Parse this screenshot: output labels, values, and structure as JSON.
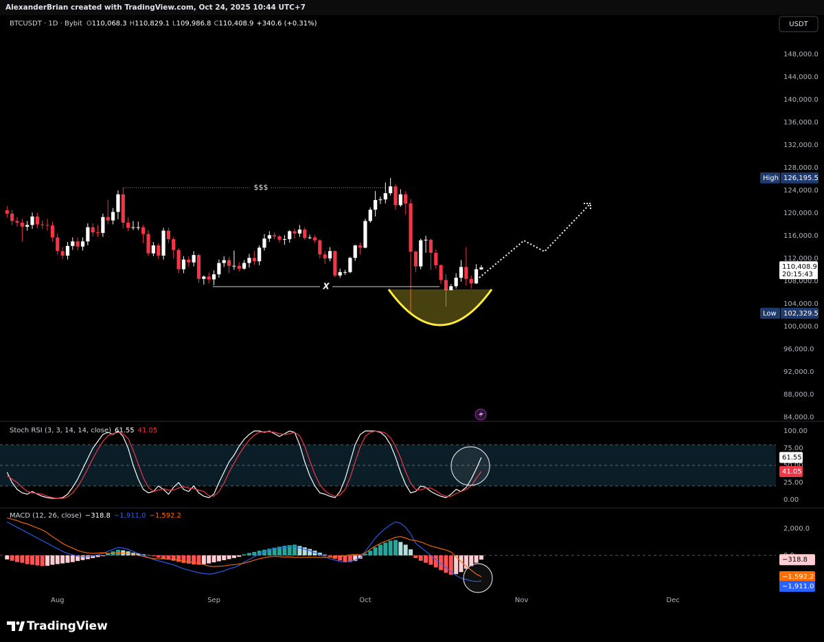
{
  "header": {
    "attribution": "AlexanderBrian created with TradingView.com, Oct 24, 2025 10:44 UTC+7",
    "currency": "USDT"
  },
  "footer": {
    "brand": "TradingView"
  },
  "chart_data": [
    {
      "type": "candlestick",
      "symbol": "BTCUSDT · 1D · Bybit",
      "legend_values": [
        {
          "key": "O",
          "text": "110,068.3"
        },
        {
          "key": "H",
          "text": "110,829.1"
        },
        {
          "key": "L",
          "text": "109,986.8"
        },
        {
          "key": "C",
          "text": "110,408.9"
        }
      ],
      "change": "+340.6 (+0.31%)",
      "annotations": [
        "$$$",
        "X"
      ],
      "xlim": [
        -1.4,
        152.4
      ],
      "xticks": [
        {
          "value": 10,
          "label": "Aug"
        },
        {
          "value": 41,
          "label": "Sep"
        },
        {
          "value": 71,
          "label": "Oct"
        },
        {
          "value": 102,
          "label": "Nov"
        },
        {
          "value": 132,
          "label": "Dec"
        }
      ],
      "ylim": [
        83400,
        154900
      ],
      "yticks": [
        {
          "value": 84000,
          "label": "84,000.0"
        },
        {
          "value": 88000,
          "label": "88,000.0"
        },
        {
          "value": 92000,
          "label": "92,000.0"
        },
        {
          "value": 96000,
          "label": "96,000.0"
        },
        {
          "value": 100000,
          "label": "100,000.0"
        },
        {
          "value": 104000,
          "label": "104,000.0"
        },
        {
          "value": 108000,
          "label": "108,000.0"
        },
        {
          "value": 112000,
          "label": "112,000.0"
        },
        {
          "value": 116000,
          "label": "116,000.0"
        },
        {
          "value": 120000,
          "label": "120,000.0"
        },
        {
          "value": 124000,
          "label": "124,000.0"
        },
        {
          "value": 128000,
          "label": "128,000.0"
        },
        {
          "value": 132000,
          "label": "132,000.0"
        },
        {
          "value": 136000,
          "label": "136,000.0"
        },
        {
          "value": 140000,
          "label": "140,000.0"
        },
        {
          "value": 144000,
          "label": "144,000.0"
        },
        {
          "value": 148000,
          "label": "148,000.0"
        }
      ],
      "up_color": "#ffffff",
      "down_color": "#f23645",
      "open": [
        120500,
        119900,
        118600,
        118300,
        117600,
        117900,
        119400,
        118000,
        117900,
        117800,
        115700,
        113300,
        112500,
        114200,
        115000,
        114100,
        115000,
        117500,
        116600,
        116500,
        119300,
        118700,
        120200,
        123300,
        118300,
        117400,
        117500,
        117500,
        116300,
        112900,
        114300,
        112500,
        116900,
        115400,
        113500,
        110100,
        111800,
        111300,
        112600,
        108400,
        108800,
        108300,
        109200,
        111200,
        111700,
        110700,
        110700,
        110200,
        111200,
        112100,
        111500,
        113900,
        115500,
        116100,
        115900,
        115300,
        115400,
        116800,
        116400,
        117100,
        115600,
        115700,
        115200,
        112700,
        112000,
        113300,
        109000,
        109600,
        109600,
        112100,
        114300,
        113900,
        118600,
        120600,
        122300,
        122400,
        123500,
        124700,
        121400,
        123300,
        121700,
        113200,
        110600,
        115200,
        115300,
        113000,
        110800,
        108200,
        106400,
        107100,
        108600,
        110500,
        108400,
        107600,
        110068.3
      ],
      "high": [
        121200,
        120600,
        119300,
        119000,
        118600,
        120100,
        120100,
        118700,
        119000,
        118500,
        116400,
        114000,
        114900,
        115700,
        115700,
        115700,
        118200,
        118200,
        117900,
        119900,
        122300,
        120900,
        124000,
        124500,
        119200,
        118600,
        118500,
        117900,
        117000,
        114900,
        114700,
        117400,
        117400,
        115800,
        113800,
        112400,
        112400,
        113300,
        112800,
        109000,
        109500,
        109900,
        111800,
        112400,
        112300,
        113400,
        111300,
        111700,
        112800,
        113300,
        114300,
        116300,
        116800,
        116600,
        116100,
        116100,
        117000,
        117300,
        117900,
        117500,
        116200,
        116100,
        115400,
        113300,
        114000,
        113400,
        110200,
        110000,
        112300,
        114400,
        114800,
        119000,
        121000,
        123900,
        122900,
        125400,
        126195.5,
        125100,
        124200,
        123900,
        122500,
        113400,
        115500,
        116000,
        115500,
        113600,
        111000,
        109200,
        107500,
        109400,
        111700,
        114000,
        109000,
        111000,
        110829.1
      ],
      "low": [
        119200,
        117900,
        117600,
        115000,
        116900,
        117200,
        117300,
        117200,
        116900,
        115000,
        112600,
        111900,
        111800,
        113500,
        113400,
        113400,
        114300,
        115900,
        115800,
        115800,
        118000,
        118000,
        118900,
        117300,
        116800,
        117000,
        117000,
        114700,
        112400,
        112400,
        111900,
        111800,
        114700,
        112000,
        109400,
        109400,
        110500,
        110600,
        107700,
        107400,
        107600,
        107300,
        108600,
        110500,
        109400,
        110000,
        109700,
        110000,
        110400,
        110900,
        110800,
        113400,
        114900,
        115400,
        114800,
        114400,
        114800,
        115500,
        115800,
        115300,
        115400,
        114800,
        112000,
        111000,
        111500,
        108700,
        108600,
        109100,
        109400,
        111600,
        112700,
        113800,
        118300,
        119400,
        121600,
        121700,
        123100,
        120600,
        121100,
        119700,
        102329.5,
        109600,
        110100,
        113000,
        110000,
        110200,
        107500,
        103500,
        106400,
        106700,
        107900,
        107200,
        106700,
        107500,
        109986.8
      ],
      "close": [
        119900,
        118600,
        118300,
        117600,
        117900,
        119400,
        118000,
        117900,
        117800,
        115700,
        113300,
        112500,
        114200,
        115000,
        114100,
        115000,
        117500,
        116600,
        116500,
        119300,
        118700,
        120200,
        123300,
        118300,
        117400,
        117500,
        117500,
        116300,
        112900,
        114300,
        112500,
        116900,
        115400,
        113500,
        110100,
        111800,
        111300,
        112600,
        108400,
        108800,
        108300,
        109200,
        111200,
        111700,
        110700,
        110700,
        110200,
        111200,
        112100,
        111500,
        113900,
        115500,
        116100,
        115900,
        115300,
        115400,
        116800,
        116400,
        117100,
        115600,
        115700,
        115200,
        112700,
        112000,
        113300,
        109000,
        109600,
        109600,
        112100,
        114300,
        113900,
        118600,
        120600,
        122300,
        122400,
        123500,
        124700,
        121400,
        123300,
        121700,
        113200,
        110600,
        115200,
        115300,
        113000,
        110800,
        108200,
        106400,
        107100,
        108600,
        110500,
        108400,
        107600,
        110100,
        110408.9
      ],
      "last_label": "110,408.9",
      "countdown": "20:15:43",
      "high_marker": {
        "label": "High",
        "text": "126,195.5"
      },
      "low_marker": {
        "label": "Low",
        "text": "102,329.5"
      }
    },
    {
      "type": "line",
      "title": "Stoch RSI (3, 3, 14, 14, close)",
      "ylim": [
        -11,
        113
      ],
      "yticks": [
        {
          "value": 0,
          "label": "0.00"
        },
        {
          "value": 25,
          "label": "25.00"
        },
        {
          "value": 50,
          "label": "50.00"
        },
        {
          "value": 75,
          "label": "75.00"
        },
        {
          "value": 100,
          "label": "100.00"
        }
      ],
      "bands": [
        80,
        50,
        20
      ],
      "band_color": "#0b1d27",
      "series": [
        {
          "color": "#ffffff",
          "values": [
            40,
            25,
            15,
            10,
            8,
            12,
            8,
            5,
            3,
            2,
            2,
            3,
            8,
            18,
            30,
            45,
            60,
            75,
            85,
            95,
            98,
            95,
            100,
            92,
            75,
            50,
            30,
            15,
            10,
            12,
            20,
            15,
            8,
            18,
            25,
            15,
            12,
            20,
            10,
            5,
            3,
            8,
            25,
            40,
            55,
            65,
            78,
            88,
            95,
            100,
            100,
            98,
            100,
            96,
            92,
            96,
            100,
            98,
            80,
            55,
            35,
            20,
            10,
            8,
            5,
            3,
            12,
            30,
            55,
            80,
            95,
            100,
            100,
            100,
            98,
            92,
            80,
            62,
            40,
            22,
            10,
            12,
            20,
            18,
            12,
            8,
            5,
            3,
            8,
            15,
            12,
            18,
            30,
            45,
            61.55
          ]
        },
        {
          "color": "#f23645",
          "values": [
            35,
            30,
            25,
            18,
            12,
            10,
            9,
            8,
            5,
            3,
            2,
            2,
            4,
            10,
            19,
            31,
            45,
            60,
            73,
            85,
            93,
            96,
            98,
            96,
            89,
            72,
            52,
            32,
            18,
            12,
            14,
            16,
            14,
            14,
            17,
            19,
            17,
            16,
            14,
            12,
            6,
            5,
            12,
            24,
            40,
            53,
            66,
            77,
            87,
            94,
            98,
            99,
            99,
            98,
            96,
            95,
            96,
            98,
            93,
            78,
            57,
            37,
            22,
            13,
            8,
            5,
            7,
            15,
            32,
            55,
            77,
            92,
            98,
            100,
            99,
            97,
            90,
            78,
            61,
            41,
            24,
            15,
            14,
            17,
            17,
            13,
            8,
            5,
            5,
            9,
            12,
            15,
            20,
            31,
            41.05
          ]
        }
      ]
    },
    {
      "type": "macd",
      "title": "MACD (12, 26, close)",
      "ylim": [
        -2670,
        3490
      ],
      "yticks": [
        {
          "value": 0,
          "label": "0.0"
        },
        {
          "value": 2000,
          "label": "2,000.0"
        }
      ],
      "zero_line": true,
      "histogram": {
        "colors": [
          "#26a69a",
          "#b2dfdb",
          "#ffcdd2",
          "#ff5252"
        ],
        "last_label": "−318.8",
        "values": [
          -300,
          -400,
          -500,
          -550,
          -650,
          -700,
          -750,
          -800,
          -780,
          -700,
          -650,
          -600,
          -550,
          -500,
          -420,
          -350,
          -280,
          -200,
          -120,
          -50,
          150,
          300,
          420,
          380,
          300,
          200,
          150,
          80,
          20,
          -60,
          -150,
          -250,
          -320,
          -400,
          -480,
          -560,
          -620,
          -680,
          -700,
          -660,
          -600,
          -520,
          -440,
          -360,
          -280,
          -200,
          -100,
          80,
          180,
          260,
          350,
          420,
          500,
          580,
          650,
          720,
          760,
          800,
          700,
          600,
          480,
          350,
          200,
          60,
          -100,
          -250,
          -380,
          -470,
          -500,
          -420,
          -250,
          120,
          350,
          600,
          800,
          950,
          1100,
          1150,
          1000,
          800,
          450,
          -200,
          -400,
          -550,
          -700,
          -900,
          -1100,
          -1300,
          -1450,
          -1400,
          -1250,
          -1000,
          -800,
          -550,
          -318.8
        ]
      },
      "series": [
        {
          "color": "#2962ff",
          "last_label": "−1,911.0",
          "values": [
            2500,
            2300,
            2100,
            1900,
            1700,
            1500,
            1300,
            1100,
            900,
            700,
            500,
            300,
            150,
            50,
            -50,
            -100,
            -100,
            -50,
            50,
            150,
            300,
            450,
            600,
            550,
            450,
            300,
            150,
            0,
            -150,
            -300,
            -400,
            -500,
            -600,
            -700,
            -850,
            -1000,
            -1100,
            -1200,
            -1300,
            -1350,
            -1400,
            -1350,
            -1250,
            -1150,
            -1000,
            -900,
            -750,
            -500,
            -300,
            -100,
            100,
            250,
            400,
            500,
            550,
            600,
            650,
            650,
            550,
            450,
            350,
            200,
            50,
            -100,
            -250,
            -350,
            -450,
            -500,
            -450,
            -350,
            -200,
            300,
            800,
            1300,
            1700,
            2000,
            2300,
            2500,
            2400,
            2100,
            1600,
            900,
            600,
            300,
            0,
            -300,
            -600,
            -900,
            -1200,
            -1500,
            -1700,
            -1800,
            -1900,
            -1950,
            -1911
          ]
        },
        {
          "color": "#ff6d00",
          "last_label": "−1,592.2",
          "values": [
            2800,
            2700,
            2600,
            2450,
            2350,
            2200,
            2050,
            1900,
            1680,
            1400,
            1150,
            900,
            700,
            550,
            370,
            250,
            180,
            150,
            170,
            200,
            150,
            150,
            180,
            170,
            150,
            100,
            0,
            -80,
            -170,
            -240,
            -250,
            -250,
            -280,
            -300,
            -370,
            -440,
            -480,
            -520,
            -600,
            -690,
            -800,
            -830,
            -810,
            -790,
            -720,
            -700,
            -650,
            -580,
            -480,
            -360,
            -250,
            -170,
            -100,
            -80,
            -100,
            -120,
            -110,
            -150,
            -150,
            -150,
            -130,
            -150,
            -150,
            -160,
            -150,
            -100,
            -70,
            -30,
            50,
            70,
            50,
            180,
            450,
            700,
            900,
            1050,
            1200,
            1350,
            1400,
            1300,
            1150,
            1100,
            1000,
            850,
            700,
            600,
            500,
            400,
            250,
            -100,
            -450,
            -800,
            -1100,
            -1400,
            -1592.2
          ]
        }
      ]
    }
  ]
}
